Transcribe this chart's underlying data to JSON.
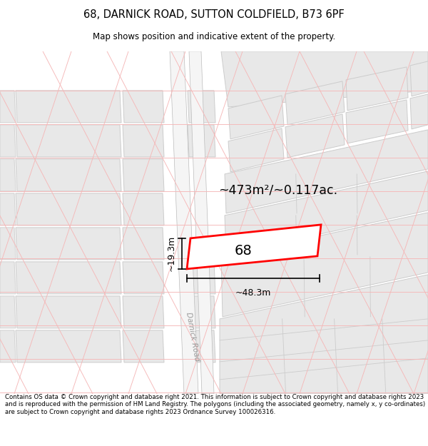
{
  "title_line1": "68, DARNICK ROAD, SUTTON COLDFIELD, B73 6PF",
  "title_line2": "Map shows position and indicative extent of the property.",
  "footer_text": "Contains OS data © Crown copyright and database right 2021. This information is subject to Crown copyright and database rights 2023 and is reproduced with the permission of HM Land Registry. The polygons (including the associated geometry, namely x, y co-ordinates) are subject to Crown copyright and database rights 2023 Ordnance Survey 100026316.",
  "area_label": "~473m²/~0.117ac.",
  "property_number": "68",
  "width_label": "~48.3m",
  "height_label": "~19.3m",
  "road_label": "Darnick Road",
  "bg_color": "#ffffff",
  "map_bg": "#ffffff",
  "plot_color_fill": "#ffffff",
  "plot_color_outline": "#ff0000",
  "road_fill": "#ffffff",
  "grid_line_color": "#f5b8b8",
  "building_fill": "#e8e8e8",
  "building_stroke": "#cccccc",
  "road_border": "#bbbbbb"
}
